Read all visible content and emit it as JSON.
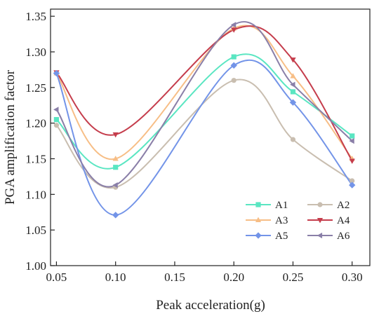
{
  "chart_data": {
    "type": "line",
    "title": "",
    "xlabel": "Peak acceleration(g)",
    "ylabel": "PGA amplification factor",
    "x": [
      0.05,
      0.1,
      0.2,
      0.25,
      0.3
    ],
    "xticks": [
      "0.05",
      "0.10",
      "0.15",
      "0.20",
      "0.25",
      "0.30"
    ],
    "yticks": [
      "1.00",
      "1.05",
      "1.10",
      "1.15",
      "1.20",
      "1.25",
      "1.30",
      "1.35"
    ],
    "xlim": [
      0.045,
      0.315
    ],
    "ylim": [
      1.0,
      1.36
    ],
    "grid": false,
    "legend_position": "bottom-right",
    "series": [
      {
        "name": "A1",
        "color": "#5ae6c2",
        "marker": "square",
        "values": [
          1.205,
          1.138,
          1.293,
          1.244,
          1.182
        ]
      },
      {
        "name": "A2",
        "color": "#c9beb0",
        "marker": "circle",
        "values": [
          1.197,
          1.11,
          1.26,
          1.177,
          1.119
        ]
      },
      {
        "name": "A3",
        "color": "#f7be86",
        "marker": "triangle-up",
        "values": [
          1.27,
          1.15,
          1.333,
          1.266,
          1.15
        ]
      },
      {
        "name": "A4",
        "color": "#c53d4c",
        "marker": "triangle-down",
        "values": [
          1.271,
          1.184,
          1.331,
          1.289,
          1.147
        ]
      },
      {
        "name": "A5",
        "color": "#7394e8",
        "marker": "diamond",
        "values": [
          1.27,
          1.071,
          1.281,
          1.229,
          1.113
        ]
      },
      {
        "name": "A6",
        "color": "#8a7fa8",
        "marker": "triangle-left",
        "values": [
          1.219,
          1.113,
          1.338,
          1.254,
          1.175
        ]
      }
    ]
  }
}
